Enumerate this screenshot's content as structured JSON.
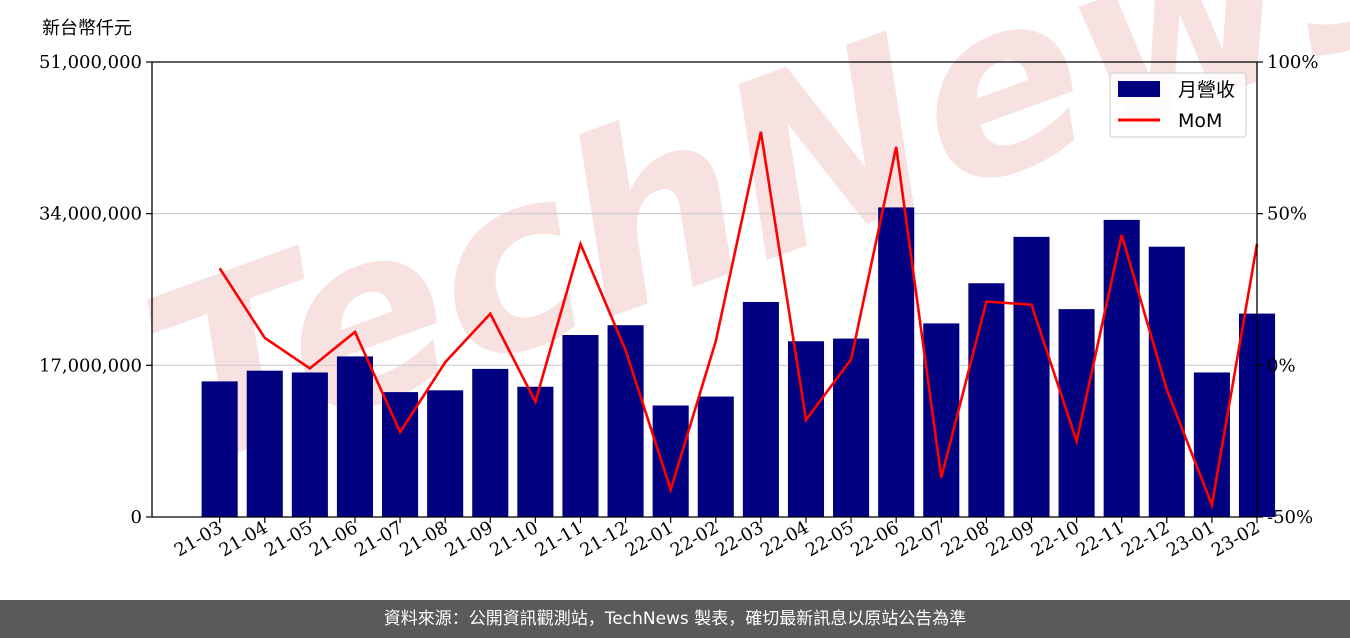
{
  "unit_label": "新台幣仟元",
  "watermark_text": "TechNews",
  "footer_text": "資料來源：公開資訊觀測站，TechNews 製表，確切最新訊息以原站公告為準",
  "colors": {
    "bar": "#000080",
    "line": "#ff0000",
    "grid": "#cccccc",
    "footer_bg": "#5a5a5a"
  },
  "chart_data": {
    "type": "bar",
    "categories": [
      "21-03",
      "21-04",
      "21-05",
      "21-06",
      "21-07",
      "21-08",
      "21-09",
      "21-10",
      "21-11",
      "21-12",
      "22-01",
      "22-02",
      "22-03",
      "22-04",
      "22-05",
      "22-06",
      "22-07",
      "22-08",
      "22-09",
      "22-10",
      "22-11",
      "22-12",
      "23-01",
      "23-02"
    ],
    "series": [
      {
        "name": "月營收",
        "type": "bar",
        "axis": "left",
        "values": [
          15200000,
          16400000,
          16200000,
          18000000,
          14000000,
          14200000,
          16600000,
          14600000,
          20400000,
          21500000,
          12500000,
          13500000,
          24100000,
          19700000,
          20000000,
          34700000,
          21700000,
          26200000,
          31400000,
          23300000,
          33300000,
          30300000,
          16200000,
          22800000
        ]
      },
      {
        "name": "MoM",
        "type": "line",
        "axis": "right",
        "values": [
          32,
          9,
          -1,
          11,
          -22,
          1,
          17,
          -12,
          40,
          5,
          -41,
          8,
          77,
          -18,
          2,
          72,
          -37,
          21,
          20,
          -25,
          43,
          -8,
          -46,
          40
        ]
      }
    ],
    "y_left": {
      "ticks": [
        "0",
        "17,000,000",
        "34,000,000",
        "51,000,000"
      ],
      "ylim": [
        0,
        51000000
      ]
    },
    "y_right": {
      "ticks": [
        "-50%",
        "0%",
        "50%",
        "100%"
      ],
      "ylim": [
        -50,
        100
      ]
    },
    "grid": "horizontal",
    "legend": {
      "placement": "top-right",
      "entries": [
        "月營收",
        "MoM"
      ]
    },
    "x_tick_rotation": "diagonal"
  }
}
